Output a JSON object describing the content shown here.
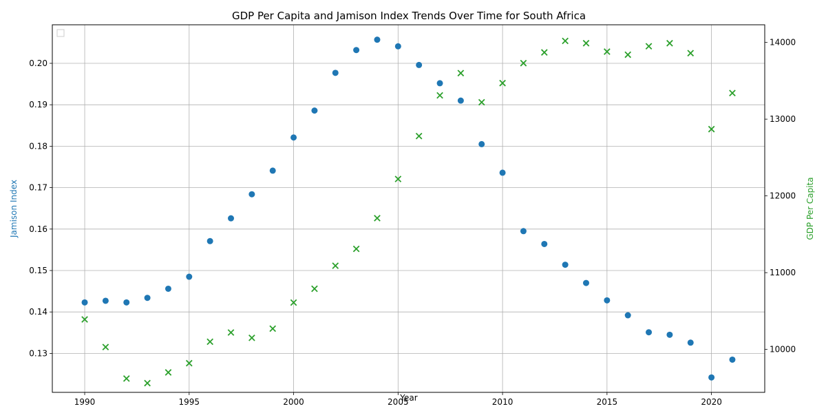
{
  "chart_data": {
    "type": "scatter",
    "title": "GDP Per Capita and Jamison Index Trends Over Time for South Africa",
    "xlabel": "Year",
    "ylabel_left": "Jamison Index",
    "ylabel_right": "GDP Per Capita",
    "x": [
      1990,
      1991,
      1992,
      1993,
      1994,
      1995,
      1996,
      1997,
      1998,
      1999,
      2000,
      2001,
      2002,
      2003,
      2004,
      2005,
      2006,
      2007,
      2008,
      2009,
      2010,
      2011,
      2012,
      2013,
      2014,
      2015,
      2016,
      2017,
      2018,
      2019,
      2020,
      2021
    ],
    "xlim": [
      1988.45,
      2022.55
    ],
    "xticks": [
      1990,
      1995,
      2000,
      2005,
      2010,
      2015,
      2020
    ],
    "series": [
      {
        "axis": "left",
        "marker": "circle",
        "color": "#1f77b4",
        "values": [
          0.1423,
          0.1427,
          0.1423,
          0.1434,
          0.1456,
          0.1485,
          0.1571,
          0.1626,
          0.1684,
          0.1741,
          0.1821,
          0.1886,
          0.1977,
          0.2032,
          0.2057,
          0.2041,
          0.1996,
          0.1952,
          0.191,
          0.1805,
          0.1736,
          0.1595,
          0.1564,
          0.1514,
          0.147,
          0.1428,
          0.1392,
          0.1351,
          0.1345,
          0.1326,
          0.1242,
          0.1285
        ]
      },
      {
        "axis": "right",
        "marker": "x",
        "color": "#2ca02c",
        "values": [
          10390,
          10030,
          9620,
          9560,
          9700,
          9820,
          10100,
          10220,
          10150,
          10270,
          10610,
          10790,
          11090,
          11310,
          11710,
          12220,
          12780,
          13310,
          13600,
          13220,
          13470,
          13730,
          13870,
          14020,
          13990,
          13880,
          13840,
          13950,
          13990,
          13860,
          12870,
          13340
        ]
      }
    ],
    "ylim_left": [
      0.1206,
      0.2093
    ],
    "yticks_left": [
      0.13,
      0.14,
      0.15,
      0.16,
      0.17,
      0.18,
      0.19,
      0.2
    ],
    "ylim_right": [
      9440,
      14230
    ],
    "yticks_right": [
      10000,
      11000,
      12000,
      13000,
      14000
    ],
    "grid": true,
    "legend": {
      "placement": "upper-left",
      "entries": []
    },
    "colors": {
      "left_axis_label": "#1f77b4",
      "right_axis_label": "#2ca02c",
      "grid": "#b0b0b0"
    }
  }
}
